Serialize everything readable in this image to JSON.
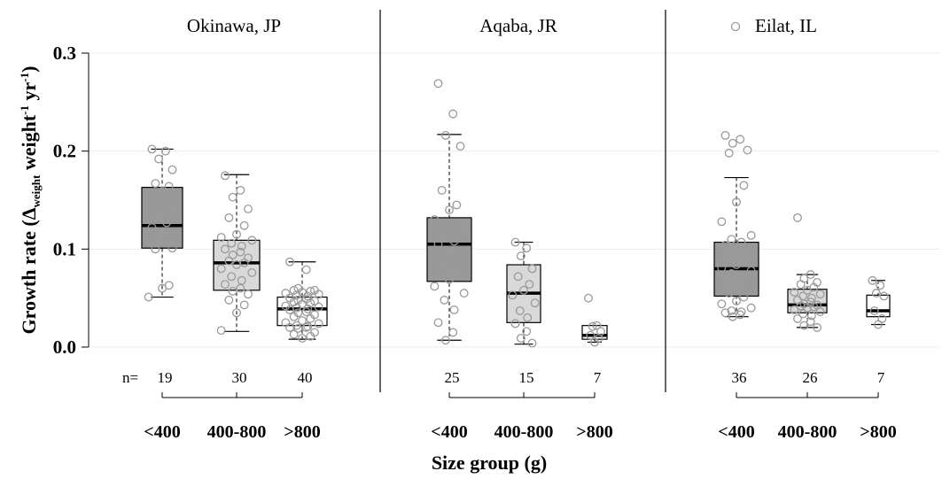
{
  "chart_data": {
    "type": "box",
    "ylabel_main": "Growth rate (",
    "ylabel_delta": "Δ",
    "ylabel_sub": "weight",
    "ylabel_mid": " weight",
    "ylabel_sup1": "-1",
    "ylabel_yr": " yr",
    "ylabel_sup2": "-1",
    "ylabel_close": ")",
    "xlabel": "Size group (g)",
    "ylim": [
      0,
      0.3
    ],
    "yticks": [
      "0.0",
      "0.1",
      "0.2",
      "0.3"
    ],
    "ytick_values": [
      0,
      0.1,
      0.2,
      0.3
    ],
    "n_prefix": "n=",
    "legend_label": "Eilat, IL",
    "grid": "horizontal",
    "panels": [
      {
        "title": "Okinawa, JP",
        "groups": [
          {
            "label": "<400",
            "n": "19",
            "fill": "#999999",
            "q1": 0.101,
            "median": 0.124,
            "q3": 0.163,
            "whisker_low": 0.051,
            "whisker_high": 0.202,
            "points": [
              0.202,
              0.2,
              0.192,
              0.181,
              0.167,
              0.164,
              0.159,
              0.152,
              0.142,
              0.135,
              0.127,
              0.122,
              0.118,
              0.112,
              0.101,
              0.1,
              0.063,
              0.06,
              0.051
            ]
          },
          {
            "label": "400-800",
            "n": "30",
            "fill": "#d9d9d9",
            "q1": 0.058,
            "median": 0.086,
            "q3": 0.109,
            "whisker_low": 0.016,
            "whisker_high": 0.176,
            "points": [
              0.175,
              0.16,
              0.153,
              0.141,
              0.132,
              0.124,
              0.115,
              0.112,
              0.109,
              0.106,
              0.103,
              0.1,
              0.097,
              0.094,
              0.091,
              0.088,
              0.086,
              0.084,
              0.08,
              0.076,
              0.072,
              0.068,
              0.064,
              0.06,
              0.057,
              0.054,
              0.048,
              0.043,
              0.035,
              0.017
            ]
          },
          {
            "label": ">800",
            "n": "40",
            "fill": "#ffffff",
            "q1": 0.022,
            "median": 0.039,
            "q3": 0.051,
            "whisker_low": 0.008,
            "whisker_high": 0.087,
            "points": [
              0.087,
              0.079,
              0.06,
              0.058,
              0.058,
              0.057,
              0.056,
              0.055,
              0.054,
              0.053,
              0.052,
              0.05,
              0.049,
              0.048,
              0.047,
              0.046,
              0.045,
              0.044,
              0.042,
              0.041,
              0.04,
              0.039,
              0.038,
              0.036,
              0.035,
              0.033,
              0.031,
              0.029,
              0.027,
              0.025,
              0.024,
              0.022,
              0.021,
              0.02,
              0.02,
              0.019,
              0.015,
              0.013,
              0.011,
              0.009
            ]
          }
        ]
      },
      {
        "title": "Aqaba, JR",
        "groups": [
          {
            "label": "<400",
            "n": "25",
            "fill": "#999999",
            "q1": 0.067,
            "median": 0.105,
            "q3": 0.132,
            "whisker_low": 0.007,
            "whisker_high": 0.217,
            "points": [
              0.269,
              0.238,
              0.216,
              0.205,
              0.16,
              0.145,
              0.14,
              0.13,
              0.122,
              0.115,
              0.108,
              0.105,
              0.098,
              0.092,
              0.088,
              0.082,
              0.075,
              0.069,
              0.062,
              0.055,
              0.048,
              0.038,
              0.025,
              0.015,
              0.007
            ]
          },
          {
            "label": "400-800",
            "n": "15",
            "fill": "#d9d9d9",
            "q1": 0.025,
            "median": 0.055,
            "q3": 0.084,
            "whisker_low": 0.003,
            "whisker_high": 0.107,
            "points": [
              0.107,
              0.101,
              0.093,
              0.08,
              0.072,
              0.064,
              0.058,
              0.053,
              0.045,
              0.037,
              0.03,
              0.024,
              0.016,
              0.009,
              0.004
            ]
          },
          {
            "label": ">800",
            "n": "7",
            "fill": "#ffffff",
            "q1": 0.008,
            "median": 0.012,
            "q3": 0.022,
            "whisker_low": 0.005,
            "whisker_high": 0.022,
            "points": [
              0.05,
              0.022,
              0.021,
              0.016,
              0.012,
              0.009,
              0.005
            ]
          }
        ]
      },
      {
        "title": "",
        "groups": [
          {
            "label": "<400",
            "n": "36",
            "fill": "#999999",
            "q1": 0.052,
            "median": 0.08,
            "q3": 0.107,
            "whisker_low": 0.031,
            "whisker_high": 0.173,
            "points": [
              0.216,
              0.212,
              0.208,
              0.201,
              0.198,
              0.165,
              0.148,
              0.128,
              0.114,
              0.11,
              0.107,
              0.104,
              0.1,
              0.097,
              0.094,
              0.09,
              0.087,
              0.084,
              0.081,
              0.078,
              0.075,
              0.072,
              0.069,
              0.066,
              0.062,
              0.058,
              0.055,
              0.051,
              0.047,
              0.044,
              0.04,
              0.037,
              0.036,
              0.035,
              0.033,
              0.031
            ]
          },
          {
            "label": "400-800",
            "n": "26",
            "fill": "#d9d9d9",
            "q1": 0.035,
            "median": 0.043,
            "q3": 0.059,
            "whisker_low": 0.02,
            "whisker_high": 0.074,
            "points": [
              0.132,
              0.074,
              0.07,
              0.066,
              0.064,
              0.061,
              0.058,
              0.056,
              0.054,
              0.052,
              0.05,
              0.048,
              0.046,
              0.044,
              0.043,
              0.042,
              0.041,
              0.04,
              0.038,
              0.036,
              0.034,
              0.032,
              0.029,
              0.026,
              0.022,
              0.02
            ]
          },
          {
            "label": ">800",
            "n": "7",
            "fill": "#ffffff",
            "q1": 0.031,
            "median": 0.037,
            "q3": 0.053,
            "whisker_low": 0.023,
            "whisker_high": 0.068,
            "points": [
              0.068,
              0.063,
              0.055,
              0.052,
              0.037,
              0.029,
              0.023
            ]
          }
        ]
      }
    ]
  }
}
